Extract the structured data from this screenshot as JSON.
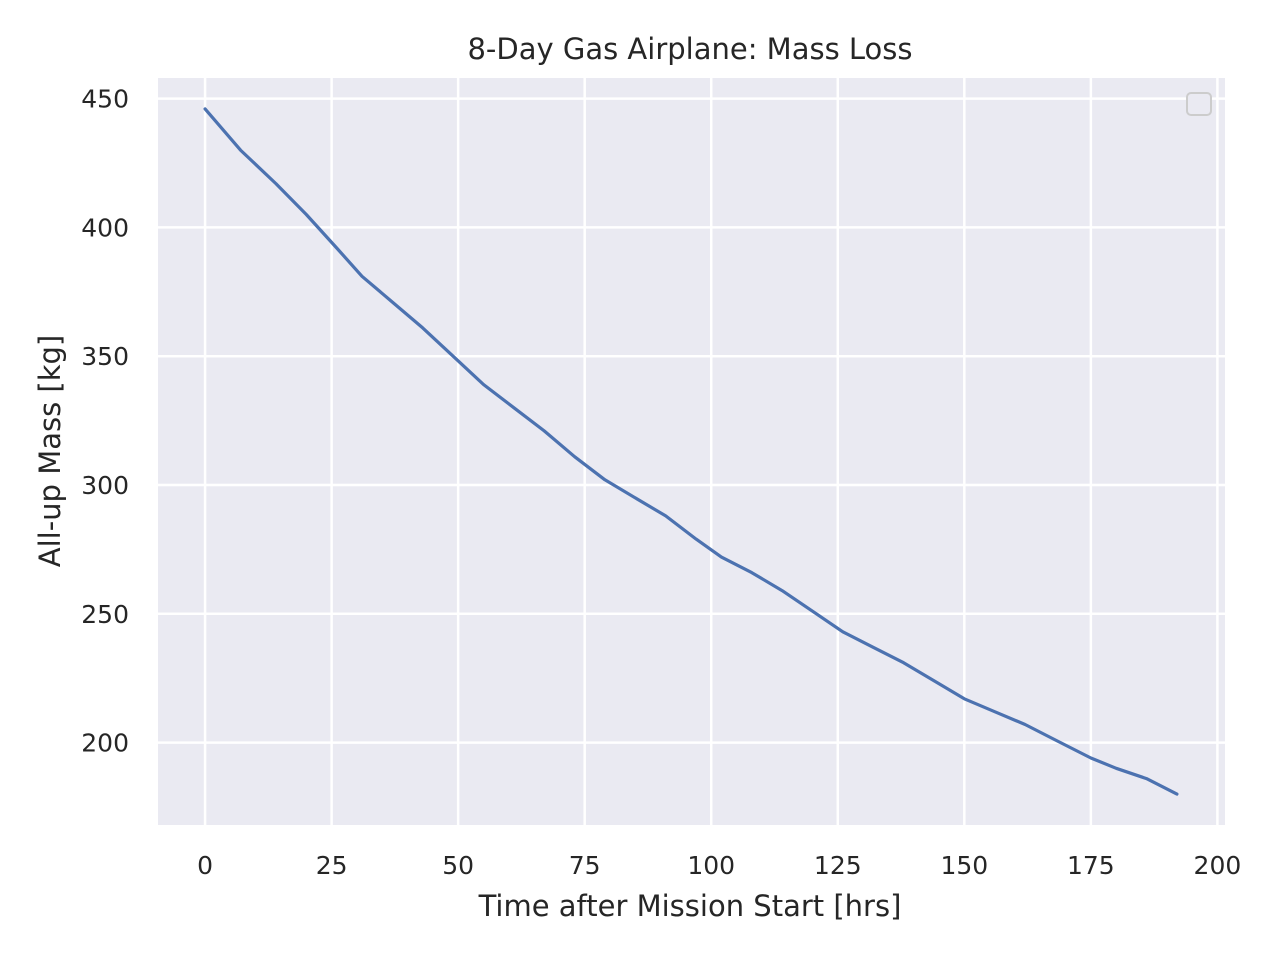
{
  "chart_data": {
    "type": "line",
    "title": "8-Day Gas Airplane: Mass Loss",
    "xlabel": "Time after Mission Start [hrs]",
    "ylabel": "All-up Mass [kg]",
    "xlim": [
      -9.3,
      201.5
    ],
    "ylim": [
      168,
      458
    ],
    "xticks": [
      0,
      25,
      50,
      75,
      100,
      125,
      150,
      175,
      200
    ],
    "yticks": [
      200,
      250,
      300,
      350,
      400,
      450
    ],
    "grid": true,
    "legend": "top-right (empty)",
    "series": [
      {
        "color": "#4c72b0",
        "x": [
          0,
          7,
          14,
          20,
          26,
          31,
          37,
          43,
          49,
          55,
          61,
          67,
          73,
          79,
          85,
          91,
          97,
          102,
          108,
          114,
          120,
          126,
          132,
          138,
          144,
          150,
          156,
          162,
          168,
          175,
          180,
          186,
          192
        ],
        "y": [
          446,
          430,
          417,
          405,
          392,
          381,
          371,
          361,
          350,
          339,
          330,
          321,
          311,
          302,
          295,
          288,
          279,
          272,
          266,
          259,
          251,
          243,
          237,
          231,
          224,
          217,
          212,
          207,
          201,
          194,
          190,
          186,
          180
        ]
      }
    ]
  },
  "colors": {
    "plot_background": "#eaeaf2",
    "grid": "#ffffff",
    "line": "#4c72b0"
  }
}
